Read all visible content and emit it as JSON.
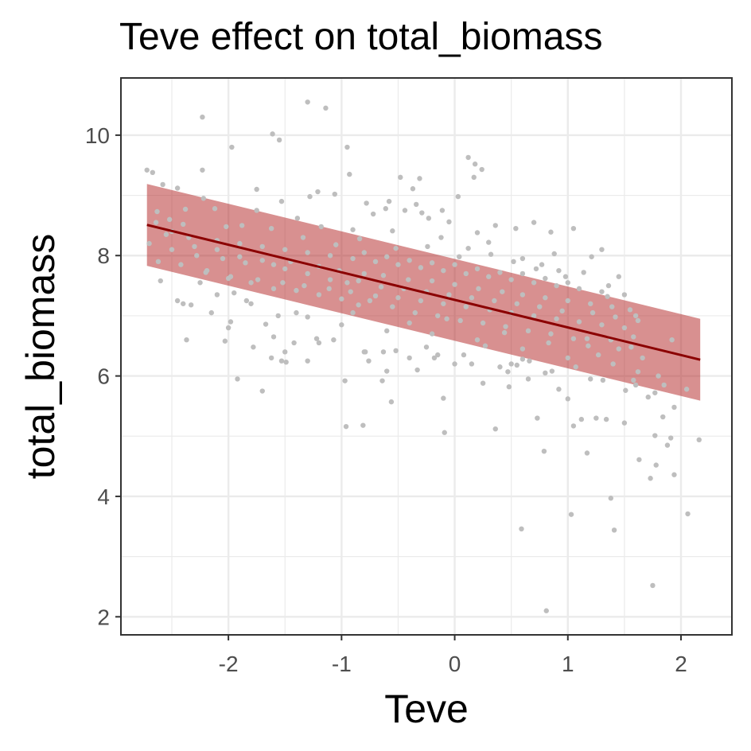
{
  "chart_data": {
    "type": "scatter",
    "title": "Teve effect on total_biomass",
    "xlabel": "Teve",
    "ylabel": "total_biomass",
    "xlim": [
      -2.95,
      2.45
    ],
    "ylim": [
      1.7,
      10.95
    ],
    "x_ticks": [
      -2,
      -1,
      0,
      1,
      2
    ],
    "x_tick_labels": [
      "-2",
      "-1",
      "0",
      "1",
      "2"
    ],
    "y_ticks": [
      2,
      4,
      6,
      8,
      10
    ],
    "y_tick_labels": [
      "2",
      "4",
      "6",
      "8",
      "10"
    ],
    "grid": true,
    "colors": {
      "points": "#bebebe",
      "fit_line": "#8b0000",
      "ribbon": "#b22222",
      "ribbon_opacity": 0.5,
      "panel_border": "#333333",
      "grid_major": "#ebebeb"
    },
    "fit": {
      "x": [
        -2.72,
        2.17
      ],
      "y": [
        8.51,
        6.27
      ],
      "lower": [
        7.83,
        5.59
      ],
      "upper": [
        9.19,
        6.95
      ]
    },
    "points": [
      [
        -1.3,
        10.55
      ],
      [
        -1.14,
        10.45
      ],
      [
        -2.23,
        10.3
      ],
      [
        -1.61,
        10.02
      ],
      [
        -1.55,
        9.92
      ],
      [
        -1.97,
        9.8
      ],
      [
        -0.95,
        9.8
      ],
      [
        0.12,
        9.63
      ],
      [
        0.18,
        9.52
      ],
      [
        -2.72,
        9.42
      ],
      [
        -2.67,
        9.38
      ],
      [
        -2.23,
        9.42
      ],
      [
        0.24,
        9.43
      ],
      [
        -0.48,
        9.3
      ],
      [
        -0.31,
        9.28
      ],
      [
        0.17,
        9.3
      ],
      [
        -2.58,
        9.18
      ],
      [
        -2.45,
        9.12
      ],
      [
        -1.75,
        9.1
      ],
      [
        -1.21,
        9.06
      ],
      [
        -1.06,
        9.02
      ],
      [
        -1.28,
        8.98
      ],
      [
        0.03,
        8.98
      ],
      [
        -0.58,
        8.9
      ],
      [
        -0.78,
        8.87
      ],
      [
        -0.34,
        8.85
      ],
      [
        -1.53,
        8.9
      ],
      [
        -2.22,
        8.95
      ],
      [
        -0.61,
        8.78
      ],
      [
        -0.72,
        8.69
      ],
      [
        -0.44,
        8.75
      ],
      [
        -0.11,
        8.75
      ],
      [
        -0.23,
        8.62
      ],
      [
        -2.64,
        8.55
      ],
      [
        -2.52,
        8.6
      ],
      [
        -2.4,
        8.52
      ],
      [
        -1.88,
        8.5
      ],
      [
        -1.62,
        8.45
      ],
      [
        0.36,
        8.5
      ],
      [
        0.7,
        8.55
      ],
      [
        1.05,
        8.45
      ],
      [
        -0.9,
        8.43
      ],
      [
        -0.55,
        8.41
      ],
      [
        0.2,
        8.38
      ],
      [
        0.85,
        8.39
      ],
      [
        1.3,
        8.1
      ],
      [
        -2.7,
        8.2
      ],
      [
        -2.5,
        8.1
      ],
      [
        -2.28,
        8.0
      ],
      [
        -2.05,
        7.95
      ],
      [
        -1.85,
        7.88
      ],
      [
        -1.6,
        7.85
      ],
      [
        -1.45,
        7.9
      ],
      [
        -1.2,
        7.82
      ],
      [
        -1.02,
        7.75
      ],
      [
        -0.8,
        7.7
      ],
      [
        -0.63,
        7.67
      ],
      [
        -0.41,
        7.6
      ],
      [
        -0.2,
        7.58
      ],
      [
        0.0,
        7.52
      ],
      [
        0.21,
        7.45
      ],
      [
        0.42,
        7.4
      ],
      [
        0.6,
        7.35
      ],
      [
        0.8,
        7.3
      ],
      [
        1.0,
        7.25
      ],
      [
        1.2,
        7.2
      ],
      [
        1.39,
        7.15
      ],
      [
        1.55,
        7.1
      ],
      [
        -2.62,
        7.9
      ],
      [
        -2.42,
        7.85
      ],
      [
        -2.19,
        7.75
      ],
      [
        -1.98,
        7.65
      ],
      [
        -1.74,
        7.6
      ],
      [
        -1.52,
        7.55
      ],
      [
        -1.33,
        7.5
      ],
      [
        -1.11,
        7.45
      ],
      [
        -0.92,
        7.4
      ],
      [
        -0.7,
        7.33
      ],
      [
        -0.5,
        7.3
      ],
      [
        -0.3,
        7.25
      ],
      [
        -0.1,
        7.2
      ],
      [
        0.1,
        7.15
      ],
      [
        0.31,
        7.1
      ],
      [
        0.5,
        7.05
      ],
      [
        0.7,
        7.0
      ],
      [
        0.9,
        6.95
      ],
      [
        1.1,
        6.9
      ],
      [
        1.3,
        6.85
      ],
      [
        1.5,
        6.8
      ],
      [
        -2.55,
        8.35
      ],
      [
        -2.35,
        8.3
      ],
      [
        -2.1,
        8.25
      ],
      [
        -1.9,
        8.2
      ],
      [
        -1.7,
        8.15
      ],
      [
        -1.5,
        8.1
      ],
      [
        -1.3,
        8.05
      ],
      [
        -1.1,
        8.0
      ],
      [
        -0.9,
        7.95
      ],
      [
        -0.7,
        7.9
      ],
      [
        -0.5,
        7.85
      ],
      [
        -0.3,
        7.8
      ],
      [
        -0.1,
        7.75
      ],
      [
        0.1,
        7.7
      ],
      [
        0.3,
        7.65
      ],
      [
        0.5,
        7.6
      ],
      [
        0.7,
        7.55
      ],
      [
        0.9,
        7.5
      ],
      [
        1.1,
        7.45
      ],
      [
        1.3,
        7.4
      ],
      [
        1.5,
        7.35
      ],
      [
        -2.4,
        7.2
      ],
      [
        -2.1,
        7.35
      ],
      [
        -1.8,
        7.2
      ],
      [
        -1.4,
        7.05
      ],
      [
        -1.0,
        6.85
      ],
      [
        -0.6,
        6.75
      ],
      [
        -0.2,
        6.7
      ],
      [
        0.2,
        6.6
      ],
      [
        0.6,
        6.45
      ],
      [
        1.0,
        6.3
      ],
      [
        1.4,
        6.2
      ],
      [
        1.8,
        6.0
      ],
      [
        -2.0,
        6.8
      ],
      [
        -1.6,
        6.65
      ],
      [
        -1.2,
        6.55
      ],
      [
        -0.8,
        6.4
      ],
      [
        -0.4,
        6.3
      ],
      [
        0.0,
        6.2
      ],
      [
        0.4,
        6.15
      ],
      [
        0.8,
        6.05
      ],
      [
        1.2,
        5.95
      ],
      [
        1.6,
        5.85
      ],
      [
        -2.03,
        6.58
      ],
      [
        -1.5,
        6.4
      ],
      [
        -1.07,
        6.6
      ],
      [
        -1.53,
        6.25
      ],
      [
        -1.49,
        6.23
      ],
      [
        -1.3,
        6.25
      ],
      [
        -0.79,
        6.4
      ],
      [
        -0.63,
        6.4
      ],
      [
        -0.52,
        6.42
      ],
      [
        -0.18,
        6.3
      ],
      [
        0.15,
        6.2
      ],
      [
        0.5,
        6.2
      ],
      [
        0.55,
        6.18
      ],
      [
        0.47,
        6.07
      ],
      [
        0.66,
        6.25
      ],
      [
        0.86,
        6.08
      ],
      [
        1.31,
        5.93
      ],
      [
        1.51,
        5.76
      ],
      [
        1.58,
        5.93
      ],
      [
        1.77,
        5.72
      ],
      [
        -2.33,
        7.18
      ],
      [
        -2.37,
        6.6
      ],
      [
        -1.98,
        6.9
      ],
      [
        -1.78,
        6.48
      ],
      [
        -1.62,
        6.3
      ],
      [
        -1.92,
        5.95
      ],
      [
        -1.7,
        5.75
      ],
      [
        -0.97,
        5.92
      ],
      [
        -0.96,
        5.16
      ],
      [
        -0.81,
        5.18
      ],
      [
        -0.56,
        5.57
      ],
      [
        -0.64,
        5.92
      ],
      [
        -0.1,
        5.63
      ],
      [
        -0.09,
        5.06
      ],
      [
        0.36,
        5.12
      ],
      [
        0.73,
        5.3
      ],
      [
        0.79,
        4.75
      ],
      [
        0.92,
        5.78
      ],
      [
        1.05,
        5.17
      ],
      [
        1.12,
        5.28
      ],
      [
        1.17,
        4.72
      ],
      [
        1.25,
        5.3
      ],
      [
        1.34,
        5.28
      ],
      [
        1.38,
        3.97
      ],
      [
        1.5,
        5.22
      ],
      [
        1.63,
        4.61
      ],
      [
        1.73,
        4.3
      ],
      [
        1.77,
        5.01
      ],
      [
        1.78,
        4.52
      ],
      [
        1.88,
        4.85
      ],
      [
        1.91,
        4.97
      ],
      [
        1.94,
        4.36
      ],
      [
        2.16,
        4.94
      ],
      [
        2.06,
        3.71
      ],
      [
        1.41,
        3.44
      ],
      [
        1.03,
        3.7
      ],
      [
        0.59,
        3.46
      ],
      [
        1.75,
        2.52
      ],
      [
        0.81,
        2.1
      ],
      [
        1.94,
        5.48
      ],
      [
        1.84,
        5.32
      ],
      [
        1.71,
        5.65
      ],
      [
        1.85,
        5.85
      ],
      [
        2.05,
        5.78
      ],
      [
        1.62,
        6.07
      ],
      [
        1.45,
        6.45
      ],
      [
        1.92,
        6.6
      ],
      [
        1.6,
        7.0
      ],
      [
        -0.37,
        9.11
      ],
      [
        -0.29,
        8.71
      ],
      [
        -0.93,
        9.35
      ],
      [
        -0.05,
        8.56
      ],
      [
        0.3,
        8.22
      ],
      [
        0.54,
        8.45
      ],
      [
        0.88,
        8.03
      ],
      [
        1.21,
        7.98
      ],
      [
        1.45,
        7.65
      ],
      [
        1.36,
        7.5
      ],
      [
        -1.75,
        8.75
      ],
      [
        -1.39,
        8.62
      ],
      [
        -1.18,
        8.48
      ],
      [
        -2.12,
        8.78
      ],
      [
        -2.38,
        8.77
      ],
      [
        -2.63,
        8.73
      ],
      [
        -2.02,
        8.48
      ],
      [
        -1.95,
        7.38
      ],
      [
        -2.25,
        7.55
      ],
      [
        -1.84,
        7.25
      ],
      [
        -1.56,
        7.0
      ],
      [
        -1.3,
        6.98
      ],
      [
        -1.22,
        6.62
      ],
      [
        -0.9,
        7.05
      ],
      [
        -0.76,
        6.25
      ],
      [
        -0.4,
        6.88
      ],
      [
        -0.25,
        6.48
      ],
      [
        -0.07,
        6.95
      ],
      [
        0.08,
        6.35
      ],
      [
        0.27,
        6.5
      ],
      [
        0.44,
        6.72
      ],
      [
        0.6,
        6.28
      ],
      [
        0.83,
        6.55
      ],
      [
        1.07,
        6.15
      ],
      [
        1.17,
        6.62
      ],
      [
        1.27,
        6.35
      ],
      [
        1.56,
        6.48
      ],
      [
        1.66,
        6.3
      ],
      [
        0.04,
        7.98
      ],
      [
        -0.24,
        8.15
      ],
      [
        -0.52,
        8.12
      ],
      [
        -0.84,
        8.28
      ],
      [
        -1.05,
        8.18
      ],
      [
        -1.34,
        8.3
      ],
      [
        0.6,
        7.95
      ],
      [
        0.77,
        7.85
      ],
      [
        0.98,
        7.65
      ],
      [
        1.14,
        7.72
      ],
      [
        -2.6,
        7.58
      ],
      [
        -2.45,
        7.25
      ],
      [
        -2.15,
        7.05
      ],
      [
        -1.67,
        6.86
      ],
      [
        -1.42,
        6.55
      ],
      [
        -0.6,
        6.08
      ],
      [
        -0.33,
        6.1
      ],
      [
        -0.15,
        6.35
      ],
      [
        0.25,
        5.88
      ],
      [
        0.48,
        5.82
      ],
      [
        0.65,
        5.95
      ],
      [
        1.0,
        5.62
      ],
      [
        -0.85,
        7.58
      ],
      [
        -0.65,
        7.48
      ],
      [
        -0.45,
        7.45
      ],
      [
        -0.25,
        7.4
      ],
      [
        -0.05,
        7.35
      ],
      [
        0.15,
        7.3
      ],
      [
        0.35,
        7.25
      ],
      [
        0.55,
        7.2
      ],
      [
        0.75,
        7.15
      ],
      [
        0.95,
        7.08
      ],
      [
        -0.75,
        7.25
      ],
      [
        -0.55,
        7.15
      ],
      [
        -0.35,
        7.05
      ],
      [
        -0.15,
        7.0
      ],
      [
        0.05,
        6.92
      ],
      [
        0.25,
        6.88
      ],
      [
        0.45,
        6.82
      ],
      [
        0.65,
        6.75
      ],
      [
        0.85,
        6.7
      ],
      [
        1.05,
        6.62
      ],
      [
        -0.8,
        8.05
      ],
      [
        -0.6,
        7.98
      ],
      [
        -0.4,
        7.92
      ],
      [
        -0.2,
        7.88
      ],
      [
        0.0,
        7.85
      ],
      [
        0.2,
        7.78
      ],
      [
        0.4,
        7.72
      ],
      [
        0.6,
        7.7
      ],
      [
        0.8,
        7.62
      ],
      [
        1.0,
        7.55
      ],
      [
        -2.5,
        8.4
      ],
      [
        -2.3,
        8.15
      ],
      [
        -2.1,
        8.1
      ],
      [
        -1.9,
        7.98
      ],
      [
        -1.7,
        7.92
      ],
      [
        -1.5,
        7.78
      ],
      [
        -1.3,
        7.7
      ],
      [
        -1.1,
        7.6
      ],
      [
        -0.95,
        7.55
      ],
      [
        -1.2,
        7.35
      ],
      [
        -1.4,
        7.42
      ],
      [
        -1.6,
        7.45
      ],
      [
        -1.8,
        7.55
      ],
      [
        -2.0,
        7.62
      ],
      [
        -2.2,
        7.72
      ],
      [
        -1.0,
        7.28
      ],
      [
        -0.85,
        7.18
      ],
      [
        1.22,
        7.05
      ],
      [
        1.42,
        6.98
      ],
      [
        1.62,
        6.92
      ],
      [
        1.18,
        6.5
      ],
      [
        1.38,
        6.6
      ],
      [
        1.58,
        6.65
      ],
      [
        1.35,
        7.32
      ],
      [
        0.12,
        8.12
      ],
      [
        0.32,
        8.02
      ],
      [
        0.52,
        7.9
      ],
      [
        0.72,
        7.78
      ],
      [
        0.92,
        7.75
      ],
      [
        -0.12,
        8.3
      ]
    ]
  }
}
